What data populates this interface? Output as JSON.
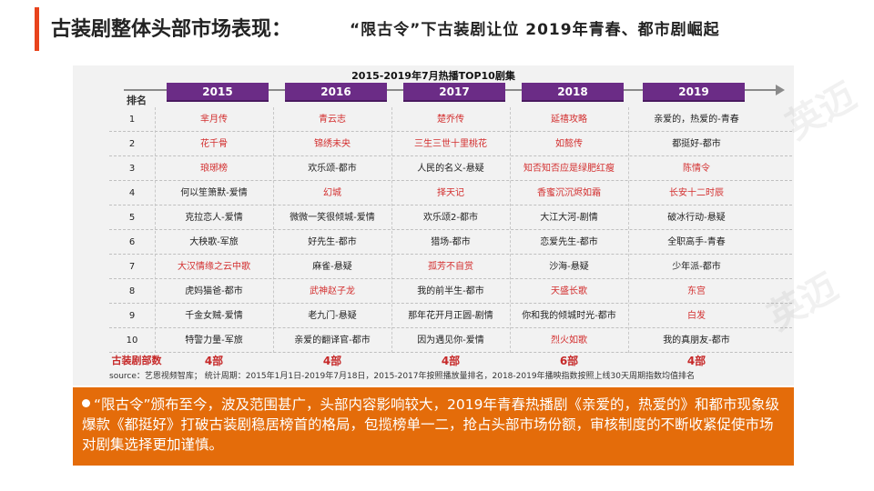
{
  "header": {
    "title": "古装剧整体头部市场表现：",
    "subtitle": "“限古令”下古装剧让位   2019年青春、都市剧崛起"
  },
  "table": {
    "title": "2015-2019年7月热播TOP10剧集",
    "rank_header": "排名",
    "years": [
      "2015",
      "2016",
      "2017",
      "2018",
      "2019"
    ],
    "rows": [
      {
        "rank": "1",
        "cells": [
          {
            "t": "芈月传",
            "red": true
          },
          {
            "t": "青云志",
            "red": true
          },
          {
            "t": "楚乔传",
            "red": true
          },
          {
            "t": "延禧攻略",
            "red": true
          },
          {
            "t": "亲爱的，热爱的-青春",
            "red": false
          }
        ]
      },
      {
        "rank": "2",
        "cells": [
          {
            "t": "花千骨",
            "red": true
          },
          {
            "t": "锦绣未央",
            "red": true
          },
          {
            "t": "三生三世十里桃花",
            "red": true
          },
          {
            "t": "如懿传",
            "red": true
          },
          {
            "t": "都挺好-都市",
            "red": false
          }
        ]
      },
      {
        "rank": "3",
        "cells": [
          {
            "t": "琅琊榜",
            "red": true
          },
          {
            "t": "欢乐颂-都市",
            "red": false
          },
          {
            "t": "人民的名义-悬疑",
            "red": false
          },
          {
            "t": "知否知否应是绿肥红瘦",
            "red": true
          },
          {
            "t": "陈情令",
            "red": true
          }
        ]
      },
      {
        "rank": "4",
        "cells": [
          {
            "t": "何以笙箫默-爱情",
            "red": false
          },
          {
            "t": "幻城",
            "red": true
          },
          {
            "t": "择天记",
            "red": true
          },
          {
            "t": "香蜜沉沉烬如霜",
            "red": true
          },
          {
            "t": "长安十二时辰",
            "red": true
          }
        ]
      },
      {
        "rank": "5",
        "cells": [
          {
            "t": "克拉恋人-爱情",
            "red": false
          },
          {
            "t": "微微一笑很倾城-爱情",
            "red": false
          },
          {
            "t": "欢乐颂2-都市",
            "red": false
          },
          {
            "t": "大江大河-剧情",
            "red": false
          },
          {
            "t": "破冰行动-悬疑",
            "red": false
          }
        ]
      },
      {
        "rank": "6",
        "cells": [
          {
            "t": "大秧歌-军旅",
            "red": false
          },
          {
            "t": "好先生-都市",
            "red": false
          },
          {
            "t": "猎场-都市",
            "red": false
          },
          {
            "t": "恋爱先生-都市",
            "red": false
          },
          {
            "t": "全职高手-青春",
            "red": false
          }
        ]
      },
      {
        "rank": "7",
        "cells": [
          {
            "t": "大汉情缘之云中歌",
            "red": true
          },
          {
            "t": "麻雀-悬疑",
            "red": false
          },
          {
            "t": "孤芳不自赏",
            "red": true
          },
          {
            "t": "沙海-悬疑",
            "red": false
          },
          {
            "t": "少年派-都市",
            "red": false
          }
        ]
      },
      {
        "rank": "8",
        "cells": [
          {
            "t": "虎妈猫爸-都市",
            "red": false
          },
          {
            "t": "武神赵子龙",
            "red": true
          },
          {
            "t": "我的前半生-都市",
            "red": false
          },
          {
            "t": "天盛长歌",
            "red": true
          },
          {
            "t": "东宫",
            "red": true
          }
        ]
      },
      {
        "rank": "9",
        "cells": [
          {
            "t": "千金女贼-爱情",
            "red": false
          },
          {
            "t": "老九门-悬疑",
            "red": false
          },
          {
            "t": "那年花开月正圆-剧情",
            "red": false
          },
          {
            "t": "你和我的倾城时光-都市",
            "red": false
          },
          {
            "t": "白发",
            "red": true
          }
        ]
      },
      {
        "rank": "10",
        "cells": [
          {
            "t": "特警力量-军旅",
            "red": false
          },
          {
            "t": "亲爱的翻译官-都市",
            "red": false
          },
          {
            "t": "因为遇见你-爱情",
            "red": false
          },
          {
            "t": "烈火如歌",
            "red": true
          },
          {
            "t": "我的真朋友-都市",
            "red": false
          }
        ]
      }
    ],
    "count_label": "古装剧部数",
    "counts": [
      "4部",
      "4部",
      "4部",
      "6部",
      "4部"
    ],
    "source": "source：艺恩视频智库；   统计周期：2015年1月1日-2019年7月18日，2015-2017年按照播放量排名，2018-2019年播映指数按照上线30天周期指数均值排名"
  },
  "note": {
    "text": "“限古令”颁布至今，波及范围甚广，头部内容影响较大，2019年青春热播剧《亲爱的，热爱的》和都市现象级爆款《都挺好》打破古装剧稳居榜首的格局，包揽榜单一二，抢占头部市场份额，审核制度的不断收紧促使市场对剧集选择更加谨慎。"
  },
  "colors": {
    "accent": "#e8431c",
    "tab": "#6b2c86",
    "highlight_text": "#d32f2f",
    "note_bg": "#e46c0a"
  }
}
